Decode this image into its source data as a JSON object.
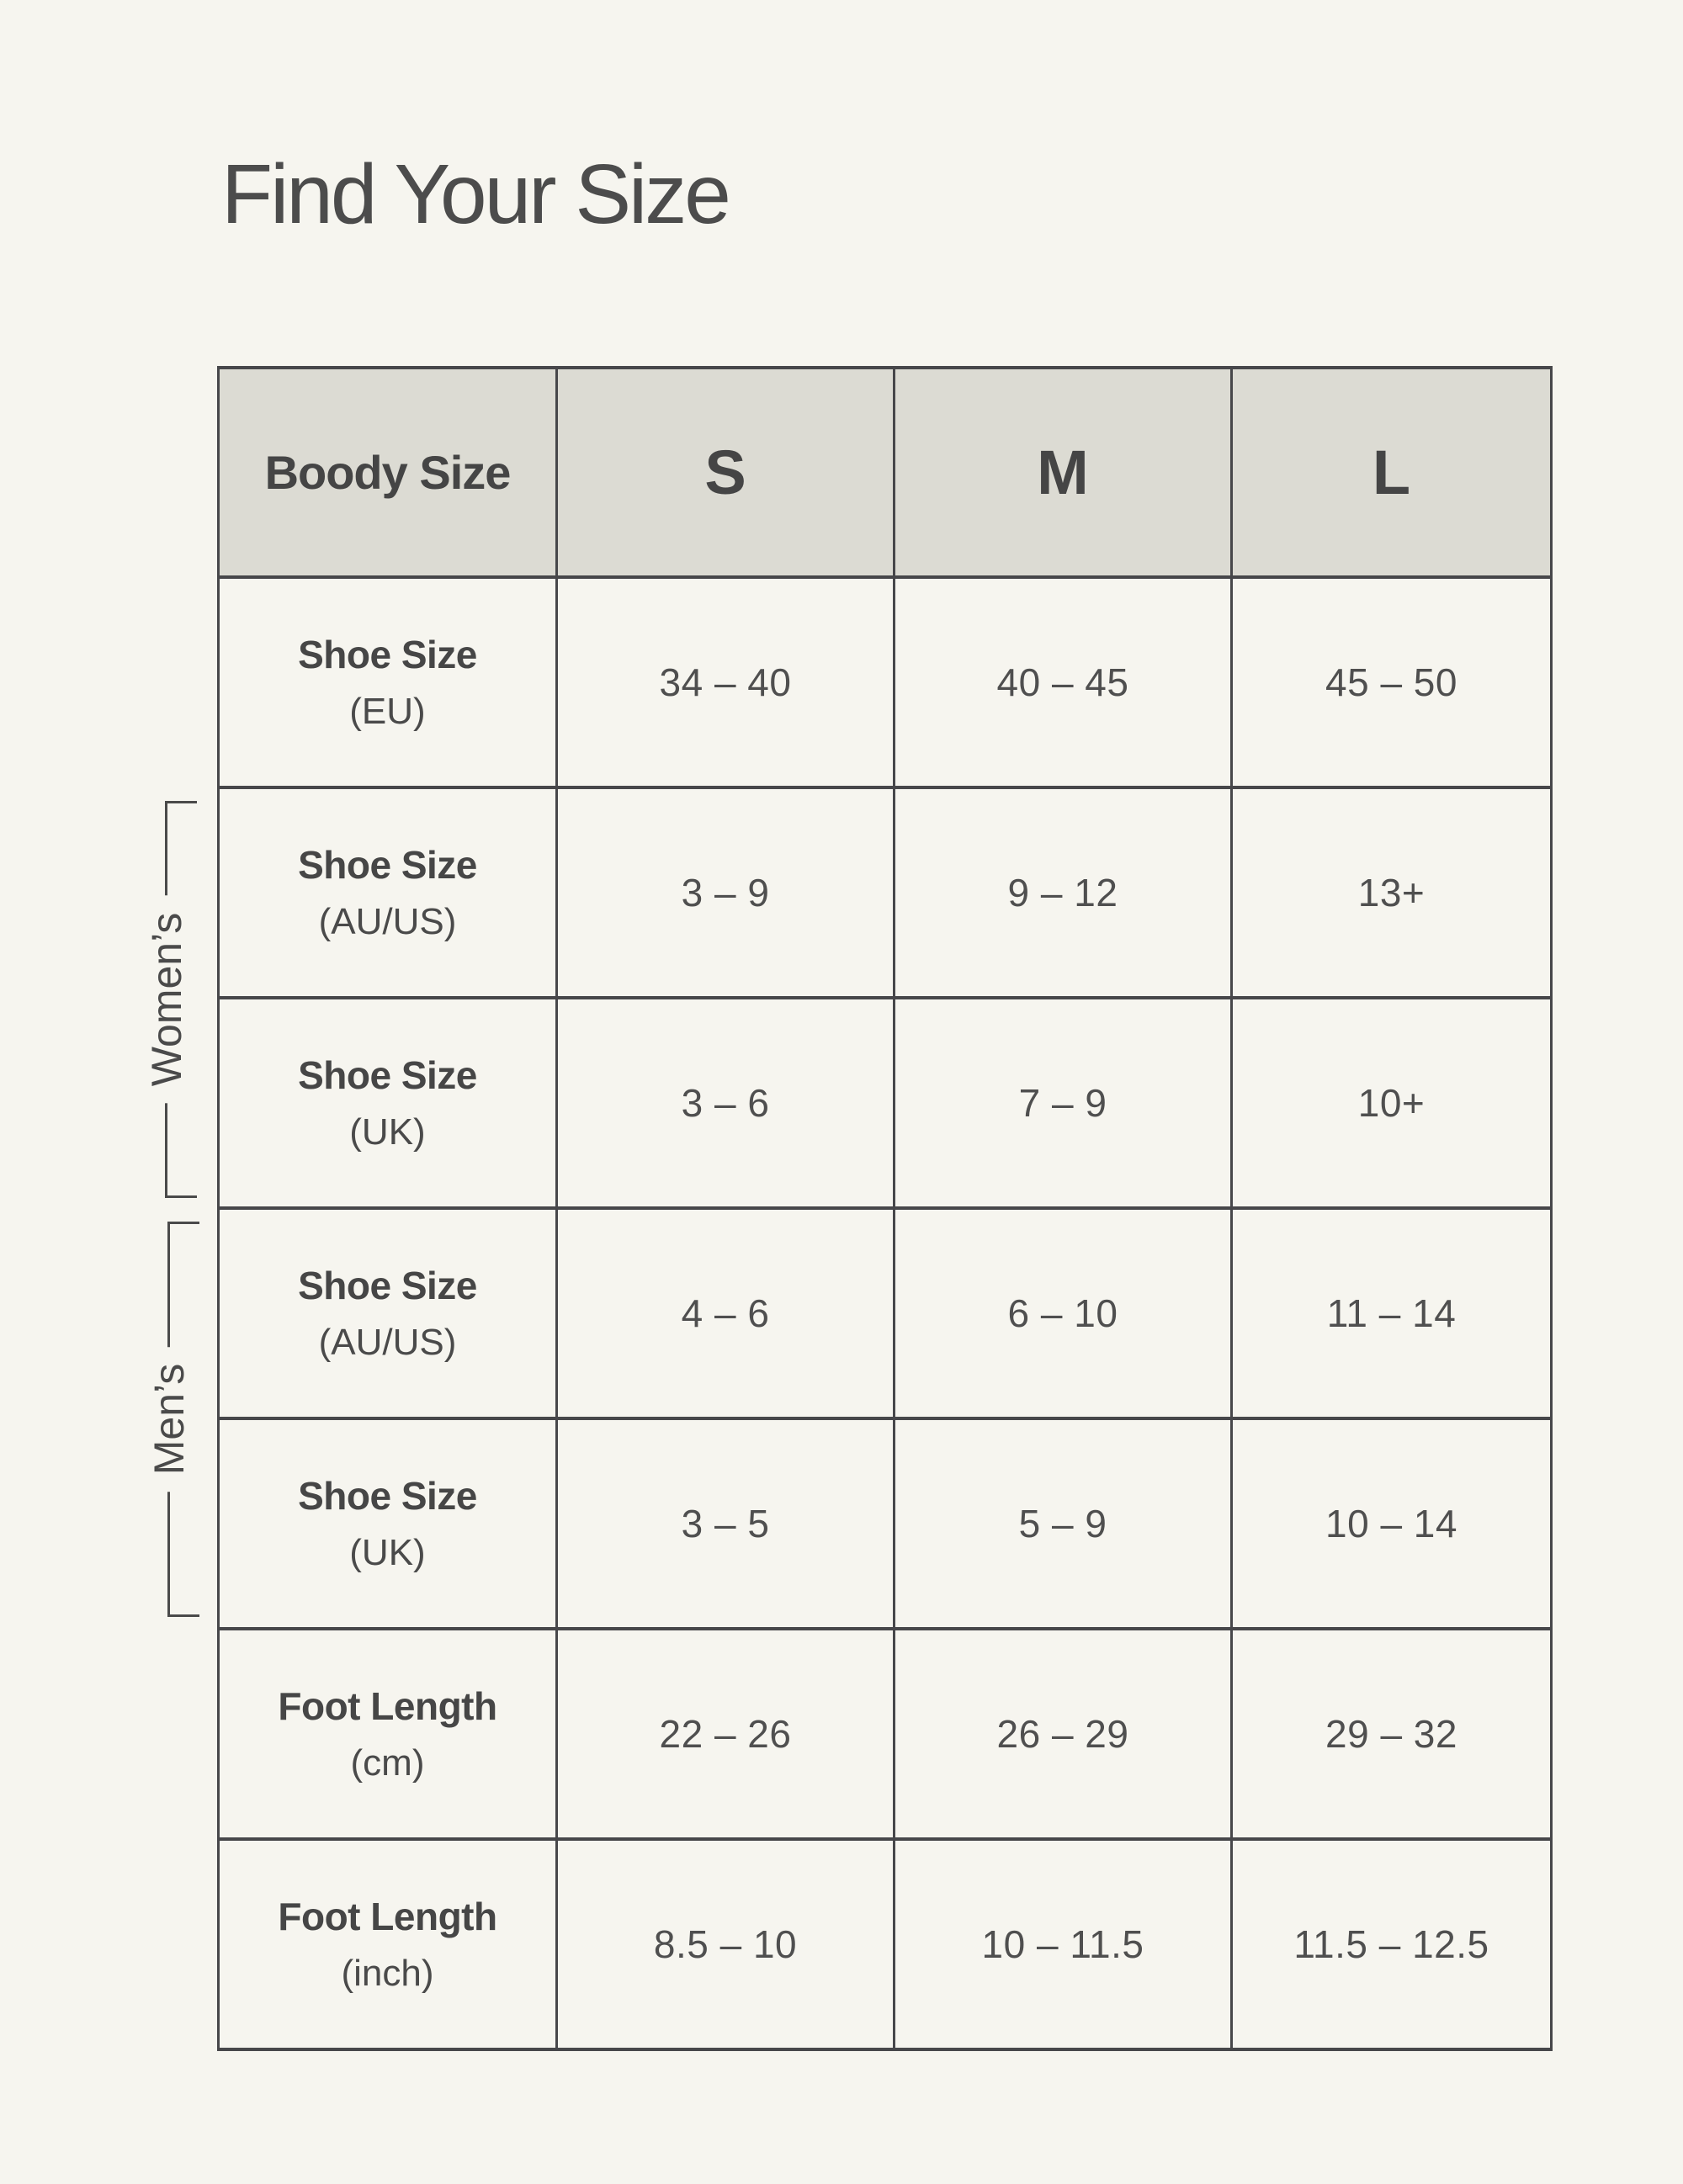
{
  "page": {
    "title": "Find Your Size"
  },
  "colors": {
    "background": "#F6F5EF",
    "header_background": "#DCDBD3",
    "border": "#47474A",
    "text": "#4A4A4A"
  },
  "brackets": {
    "womens": "Women’s",
    "mens": "Men’s"
  },
  "chart_data": {
    "type": "table",
    "title": "Find Your Size",
    "header": {
      "label": "Boody Size",
      "columns": [
        "S",
        "M",
        "L"
      ]
    },
    "rows": [
      {
        "group": "",
        "label": "Shoe Size",
        "sub": "(EU)",
        "values": [
          "34 – 40",
          "40 – 45",
          "45 – 50"
        ]
      },
      {
        "group": "Women’s",
        "label": "Shoe Size",
        "sub": "(AU/US)",
        "values": [
          "3 – 9",
          "9 – 12",
          "13+"
        ]
      },
      {
        "group": "Women’s",
        "label": "Shoe Size",
        "sub": "(UK)",
        "values": [
          "3 – 6",
          "7 – 9",
          "10+"
        ]
      },
      {
        "group": "Men’s",
        "label": "Shoe Size",
        "sub": "(AU/US)",
        "values": [
          "4 – 6",
          "6 – 10",
          "11 – 14"
        ]
      },
      {
        "group": "Men’s",
        "label": "Shoe Size",
        "sub": "(UK)",
        "values": [
          "3 – 5",
          "5 – 9",
          "10 – 14"
        ]
      },
      {
        "group": "",
        "label": "Foot Length",
        "sub": "(cm)",
        "values": [
          "22 – 26",
          "26 – 29",
          "29 – 32"
        ]
      },
      {
        "group": "",
        "label": "Foot Length",
        "sub": "(inch)",
        "values": [
          "8.5 – 10",
          "10 – 11.5",
          "11.5 – 12.5"
        ]
      }
    ]
  }
}
